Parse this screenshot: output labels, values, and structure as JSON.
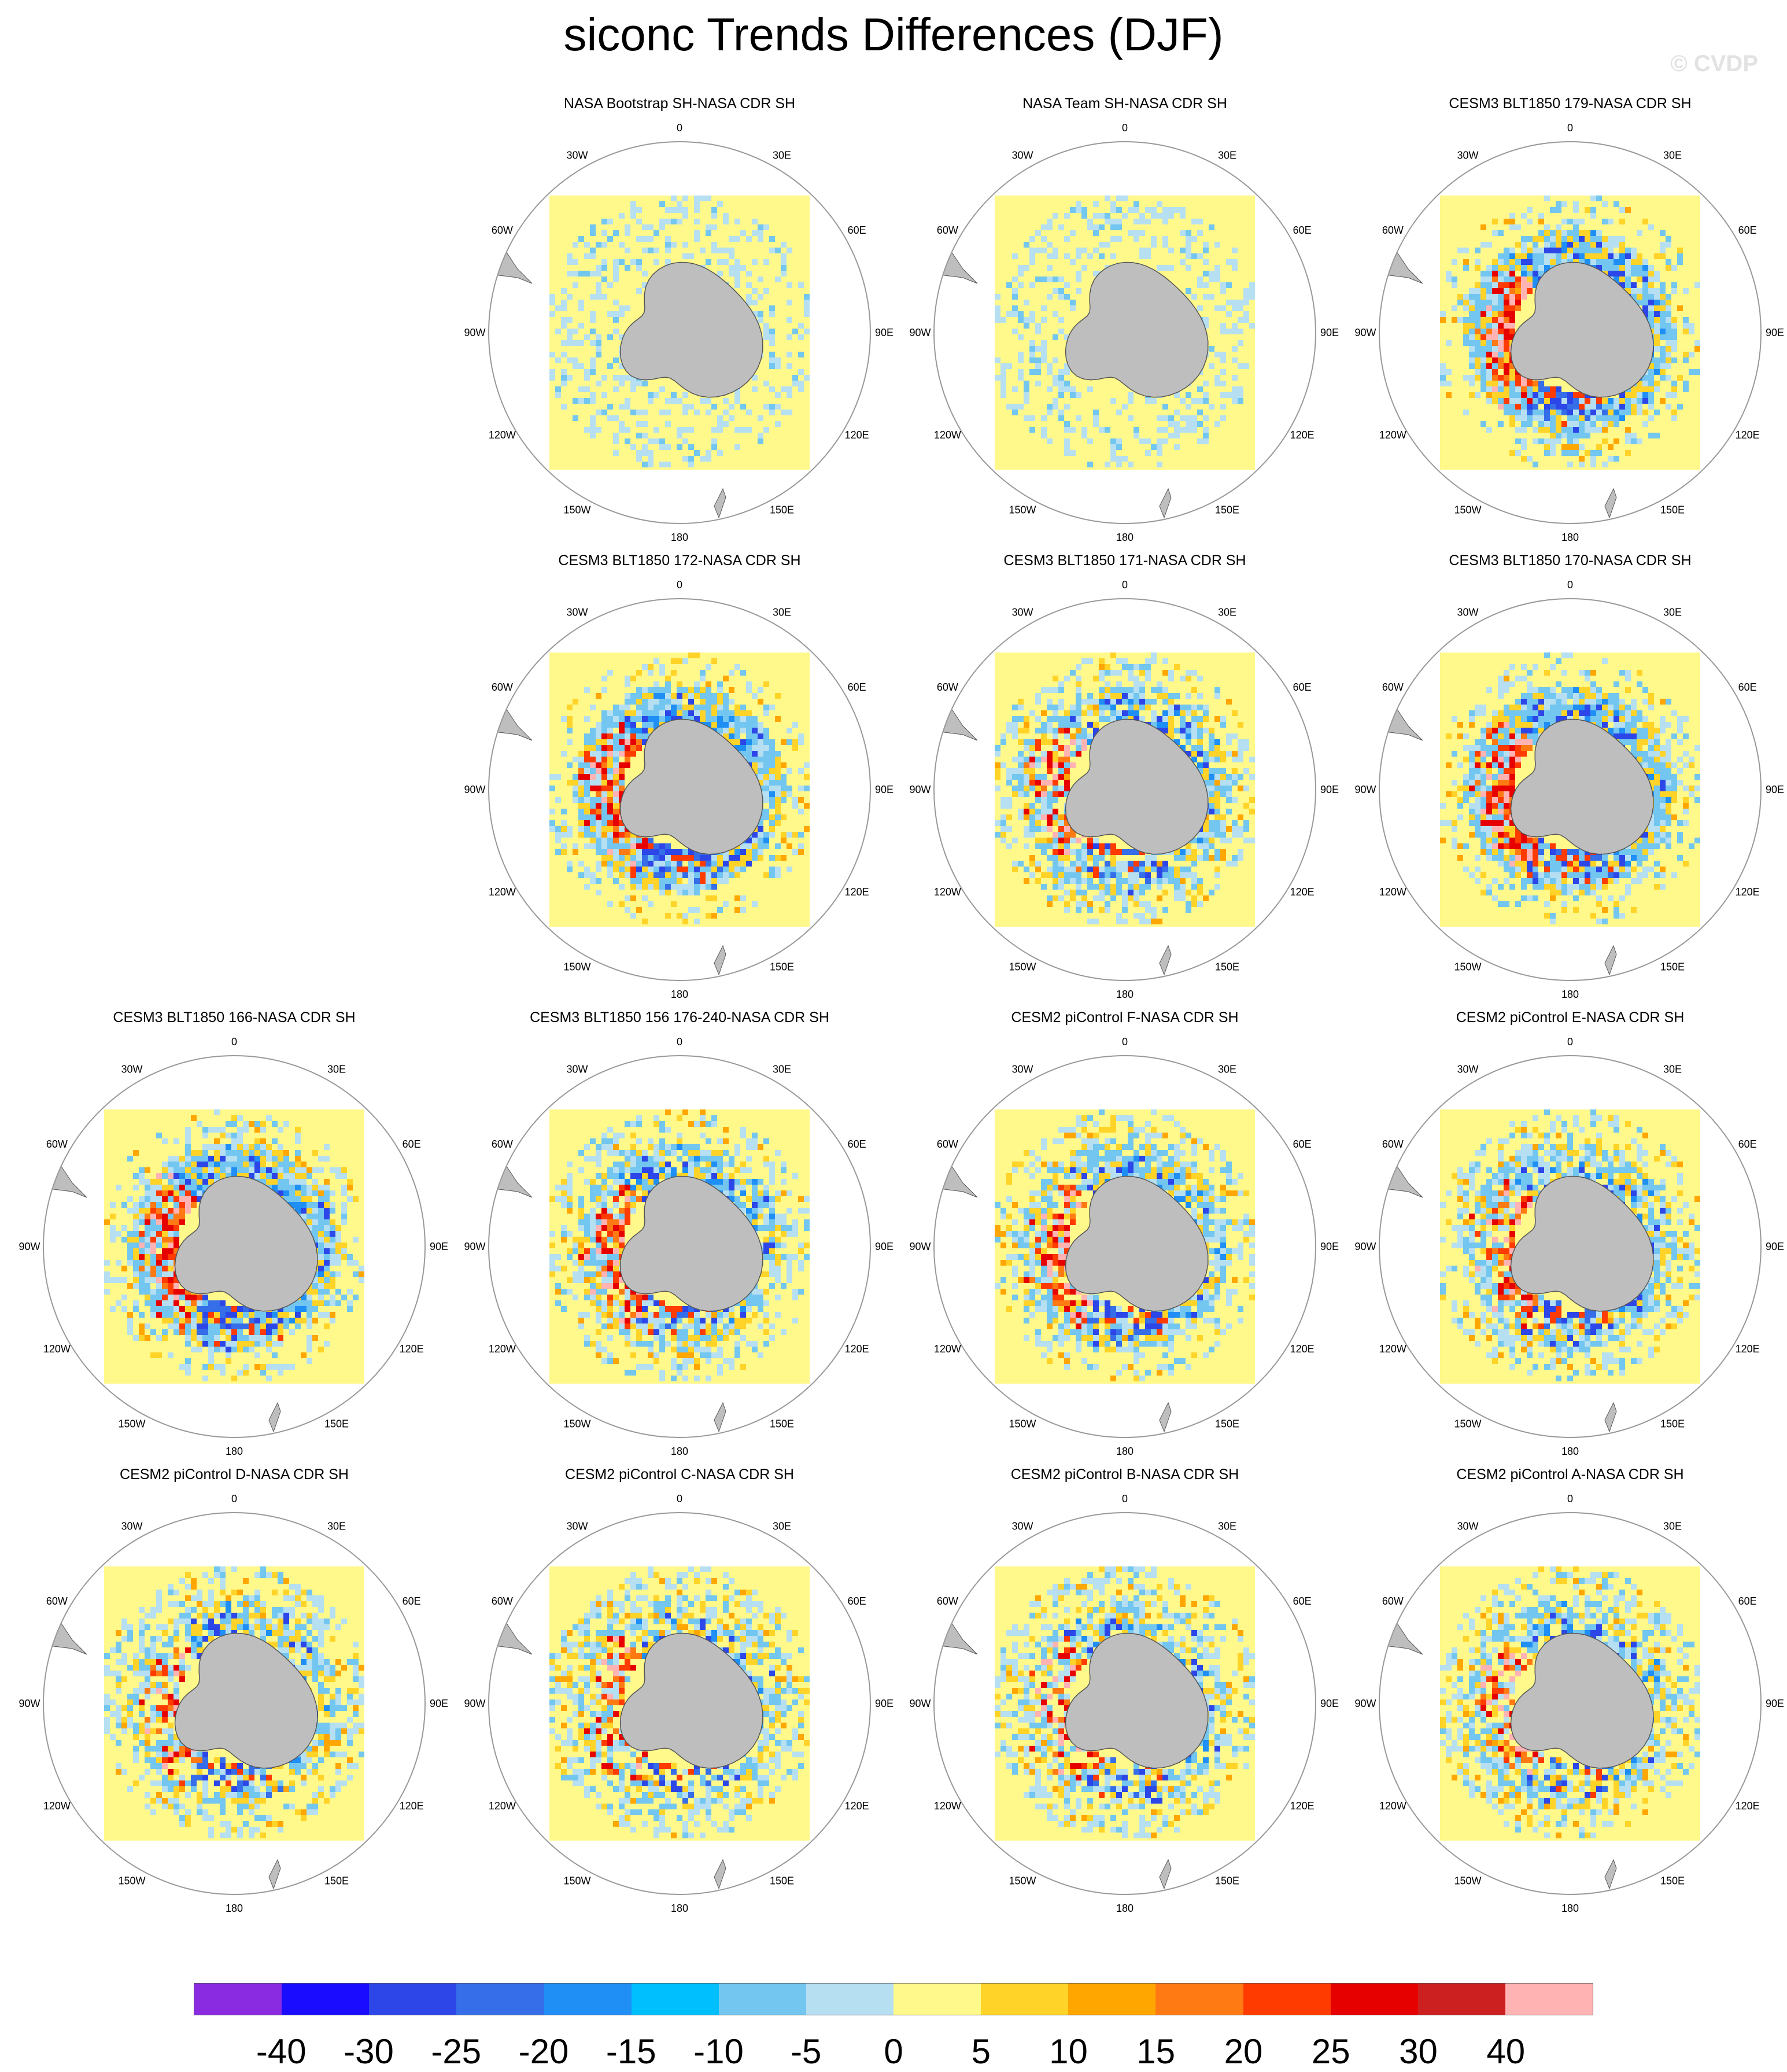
{
  "title": "siconc Trends Differences (DJF)",
  "watermark": "© CVDP",
  "longitude_labels": [
    "0",
    "30E",
    "60E",
    "90E",
    "120E",
    "150E",
    "180",
    "150W",
    "120W",
    "90W",
    "60W",
    "30W"
  ],
  "panels": [
    {
      "title": "NASA Bootstrap SH-NASA CDR SH",
      "pattern": "obs_bootstrap"
    },
    {
      "title": "NASA Team SH-NASA CDR SH",
      "pattern": "obs_team"
    },
    {
      "title": "CESM3 BLT1850 179-NASA CDR SH",
      "pattern": "model_strong"
    },
    {
      "title": "CESM3 BLT1850 172-NASA CDR SH",
      "pattern": "model_strong"
    },
    {
      "title": "CESM3 BLT1850 171-NASA CDR SH",
      "pattern": "model_mixed"
    },
    {
      "title": "CESM3 BLT1850 170-NASA CDR SH",
      "pattern": "model_strong"
    },
    {
      "title": "CESM3 BLT1850 166-NASA CDR SH",
      "pattern": "model_strong"
    },
    {
      "title": "CESM3 BLT1850 156 176-240-NASA CDR SH",
      "pattern": "model_mixed"
    },
    {
      "title": "CESM2 piControl F-NASA CDR SH",
      "pattern": "model_mixed"
    },
    {
      "title": "CESM2 piControl E-NASA CDR SH",
      "pattern": "model_mixed"
    },
    {
      "title": "CESM2 piControl D-NASA CDR SH",
      "pattern": "model_weak"
    },
    {
      "title": "CESM2 piControl C-NASA CDR SH",
      "pattern": "model_weak"
    },
    {
      "title": "CESM2 piControl B-NASA CDR SH",
      "pattern": "model_weak"
    },
    {
      "title": "CESM2 piControl A-NASA CDR SH",
      "pattern": "model_weak"
    }
  ],
  "colorbar": {
    "colors": [
      "#8a2be2",
      "#1a0dff",
      "#2c46e8",
      "#356ee8",
      "#1f8ff5",
      "#00bfff",
      "#72c6f0",
      "#b6dff2",
      "#fff88a",
      "#ffd327",
      "#ffa600",
      "#ff7a12",
      "#ff3b00",
      "#e60000",
      "#cc1f1f",
      "#ffb3b3"
    ],
    "labels": [
      "-40",
      "-30",
      "-25",
      "-20",
      "-15",
      "-10",
      "-5",
      "0",
      "5",
      "10",
      "15",
      "20",
      "25",
      "30",
      "40"
    ]
  },
  "colors": {
    "land": "#bebebe",
    "ocean_background": "#fff88a",
    "border": "#999999"
  }
}
